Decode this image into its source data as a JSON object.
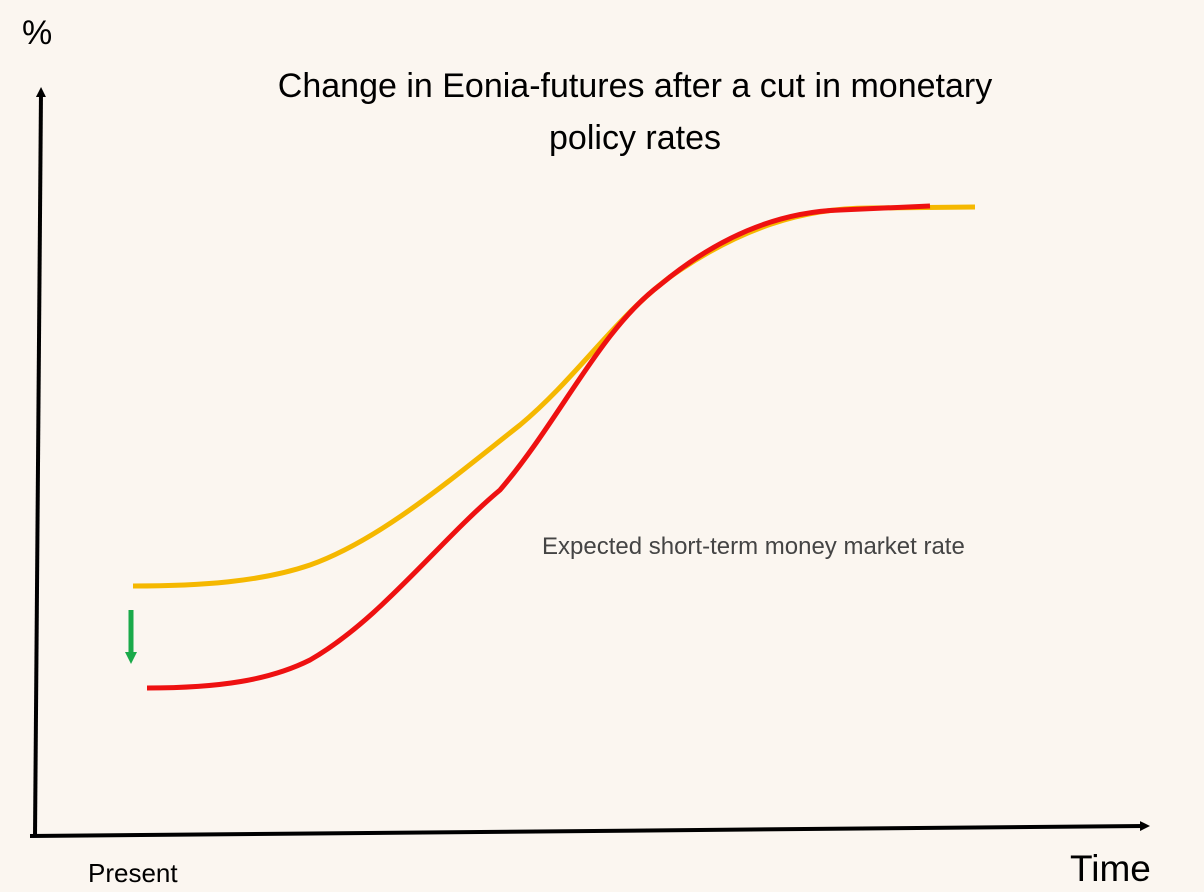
{
  "axis_labels": {
    "y": "%",
    "x": "Time",
    "origin": "Present"
  },
  "title": "Change in Eonia-futures after a cut in monetary policy rates",
  "annotation": "Expected short-term money market rate"
}
